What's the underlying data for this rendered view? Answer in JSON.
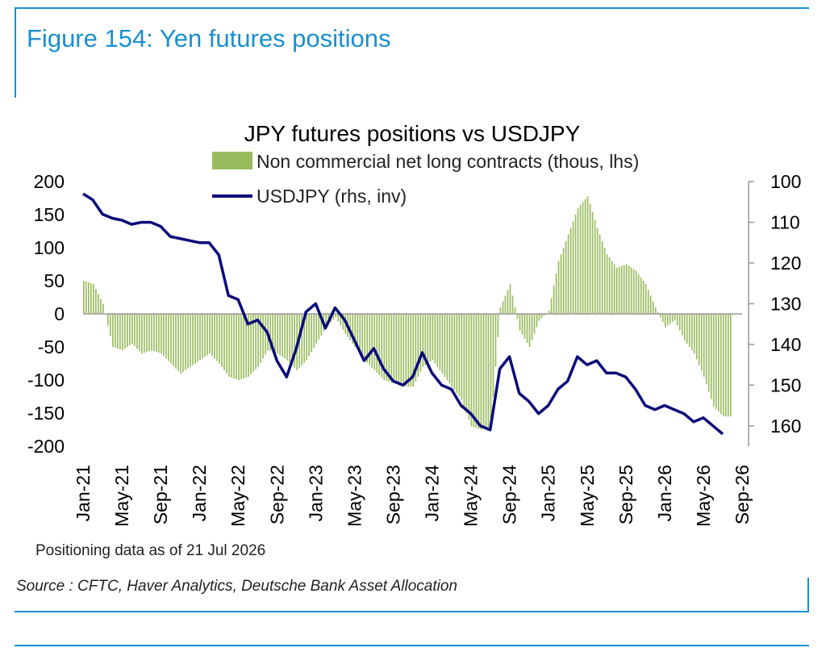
{
  "figure_title": "Figure 154: Yen futures positions",
  "source": "Source : CFTC, Haver Analytics, Deutsche Bank Asset Allocation",
  "colors": {
    "accent": "#1a8fd0",
    "bars": "#99bb5e",
    "line": "#0b0b7a"
  },
  "chart_data": {
    "type": "bar",
    "title": "JPY futures positions  vs USDJPY",
    "note": "Positioning data as of 21 Jul 2026",
    "legend_placement": "top-center",
    "grid": false,
    "x_tick_labels": [
      "Jan-21",
      "May-21",
      "Sep-21",
      "Jan-22",
      "May-22",
      "Sep-22",
      "Jan-23",
      "May-23",
      "Sep-23",
      "Jan-24",
      "May-24",
      "Sep-24",
      "Jan-25",
      "May-25",
      "Sep-25",
      "Jan-26",
      "May-26",
      "Sep-26"
    ],
    "x_range": [
      "2021-01",
      "2026-09"
    ],
    "y_left": {
      "range": [
        -200,
        200
      ],
      "ticks": [
        200,
        150,
        100,
        50,
        0,
        -50,
        -100,
        -150,
        -200
      ]
    },
    "y_right": {
      "range": [
        100,
        165
      ],
      "inverted": true,
      "ticks": [
        100,
        110,
        120,
        130,
        140,
        150,
        160
      ]
    },
    "series": [
      {
        "name": "Non commercial net long contracts (thous, lhs)",
        "type": "bar",
        "axis": "left",
        "points": [
          [
            "2021-01",
            50
          ],
          [
            "2021-02",
            45
          ],
          [
            "2021-03",
            15
          ],
          [
            "2021-04",
            -50
          ],
          [
            "2021-05",
            -55
          ],
          [
            "2021-06",
            -45
          ],
          [
            "2021-07",
            -60
          ],
          [
            "2021-08",
            -55
          ],
          [
            "2021-09",
            -60
          ],
          [
            "2021-10",
            -75
          ],
          [
            "2021-11",
            -90
          ],
          [
            "2021-12",
            -80
          ],
          [
            "2022-01",
            -70
          ],
          [
            "2022-02",
            -60
          ],
          [
            "2022-03",
            -75
          ],
          [
            "2022-04",
            -95
          ],
          [
            "2022-05",
            -100
          ],
          [
            "2022-06",
            -95
          ],
          [
            "2022-07",
            -80
          ],
          [
            "2022-08",
            -55
          ],
          [
            "2022-09",
            -60
          ],
          [
            "2022-10",
            -70
          ],
          [
            "2022-11",
            -85
          ],
          [
            "2022-12",
            -70
          ],
          [
            "2023-01",
            -45
          ],
          [
            "2023-02",
            -20
          ],
          [
            "2023-03",
            -5
          ],
          [
            "2023-04",
            -30
          ],
          [
            "2023-05",
            -50
          ],
          [
            "2023-06",
            -70
          ],
          [
            "2023-07",
            -85
          ],
          [
            "2023-08",
            -100
          ],
          [
            "2023-09",
            -105
          ],
          [
            "2023-10",
            -110
          ],
          [
            "2023-11",
            -110
          ],
          [
            "2023-12",
            -80
          ],
          [
            "2024-01",
            -70
          ],
          [
            "2024-02",
            -90
          ],
          [
            "2024-03",
            -110
          ],
          [
            "2024-04",
            -130
          ],
          [
            "2024-05",
            -170
          ],
          [
            "2024-06",
            -175
          ],
          [
            "2024-07",
            -170
          ],
          [
            "2024-08",
            10
          ],
          [
            "2024-09",
            45
          ],
          [
            "2024-10",
            -25
          ],
          [
            "2024-11",
            -50
          ],
          [
            "2024-12",
            -10
          ],
          [
            "2025-01",
            5
          ],
          [
            "2025-02",
            80
          ],
          [
            "2025-03",
            120
          ],
          [
            "2025-04",
            160
          ],
          [
            "2025-05",
            178
          ],
          [
            "2025-06",
            130
          ],
          [
            "2025-07",
            90
          ],
          [
            "2025-08",
            70
          ],
          [
            "2025-09",
            75
          ],
          [
            "2025-10",
            65
          ],
          [
            "2025-11",
            45
          ],
          [
            "2025-12",
            10
          ],
          [
            "2026-01",
            -20
          ],
          [
            "2026-02",
            -10
          ],
          [
            "2026-03",
            -40
          ],
          [
            "2026-04",
            -60
          ],
          [
            "2026-05",
            -95
          ],
          [
            "2026-06",
            -140
          ],
          [
            "2026-07",
            -155
          ]
        ]
      },
      {
        "name": "USDJPY (rhs, inv)",
        "type": "line",
        "axis": "right",
        "points": [
          [
            "2021-01",
            103
          ],
          [
            "2021-02",
            104.5
          ],
          [
            "2021-03",
            108
          ],
          [
            "2021-04",
            109
          ],
          [
            "2021-05",
            109.5
          ],
          [
            "2021-06",
            110.5
          ],
          [
            "2021-07",
            110
          ],
          [
            "2021-08",
            110
          ],
          [
            "2021-09",
            111
          ],
          [
            "2021-10",
            113.5
          ],
          [
            "2021-11",
            114
          ],
          [
            "2021-12",
            114.5
          ],
          [
            "2022-01",
            115
          ],
          [
            "2022-02",
            115
          ],
          [
            "2022-03",
            118
          ],
          [
            "2022-04",
            128
          ],
          [
            "2022-05",
            129
          ],
          [
            "2022-06",
            135
          ],
          [
            "2022-07",
            134
          ],
          [
            "2022-08",
            137
          ],
          [
            "2022-09",
            144
          ],
          [
            "2022-10",
            148
          ],
          [
            "2022-11",
            141
          ],
          [
            "2022-12",
            132
          ],
          [
            "2023-01",
            130
          ],
          [
            "2023-02",
            136
          ],
          [
            "2023-03",
            131
          ],
          [
            "2023-04",
            134
          ],
          [
            "2023-05",
            139
          ],
          [
            "2023-06",
            144
          ],
          [
            "2023-07",
            141
          ],
          [
            "2023-08",
            146
          ],
          [
            "2023-09",
            149
          ],
          [
            "2023-10",
            150
          ],
          [
            "2023-11",
            148
          ],
          [
            "2023-12",
            142
          ],
          [
            "2024-01",
            147
          ],
          [
            "2024-02",
            150
          ],
          [
            "2024-03",
            151
          ],
          [
            "2024-04",
            155
          ],
          [
            "2024-05",
            157
          ],
          [
            "2024-06",
            160
          ],
          [
            "2024-07",
            161
          ],
          [
            "2024-08",
            146
          ],
          [
            "2024-09",
            143
          ],
          [
            "2024-10",
            152
          ],
          [
            "2024-11",
            154
          ],
          [
            "2024-12",
            157
          ],
          [
            "2025-01",
            155
          ],
          [
            "2025-02",
            151
          ],
          [
            "2025-03",
            149
          ],
          [
            "2025-04",
            143
          ],
          [
            "2025-05",
            145
          ],
          [
            "2025-06",
            144
          ],
          [
            "2025-07",
            147
          ],
          [
            "2025-08",
            147
          ],
          [
            "2025-09",
            148
          ],
          [
            "2025-10",
            151
          ],
          [
            "2025-11",
            155
          ],
          [
            "2025-12",
            156
          ],
          [
            "2026-01",
            155
          ],
          [
            "2026-02",
            156
          ],
          [
            "2026-03",
            157
          ],
          [
            "2026-04",
            159
          ],
          [
            "2026-05",
            158
          ],
          [
            "2026-06",
            160
          ],
          [
            "2026-07",
            162
          ]
        ]
      }
    ]
  }
}
